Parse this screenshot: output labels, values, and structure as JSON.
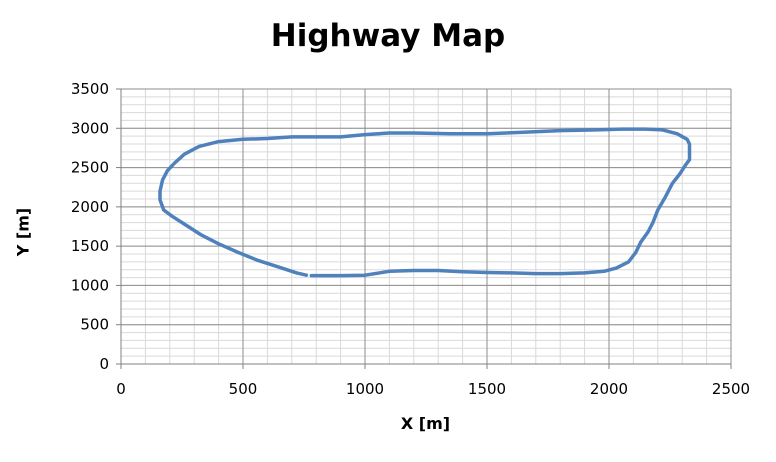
{
  "chart_data": {
    "type": "line",
    "title": "Highway Map",
    "xlabel": "X [m]",
    "ylabel": "Y [m]",
    "xlim": [
      0,
      2500
    ],
    "ylim": [
      0,
      3500
    ],
    "xticks": [
      0,
      500,
      1000,
      1500,
      2000,
      2500
    ],
    "yticks": [
      0,
      500,
      1000,
      1500,
      2000,
      2500,
      3000,
      3500
    ],
    "grid": true,
    "legend": "none",
    "line_color": "#4F81BD",
    "series": [
      {
        "x": [
          780,
          900,
          1000,
          1100,
          1200,
          1300,
          1400,
          1500,
          1600,
          1700,
          1800,
          1900,
          1980,
          2030,
          2080,
          2110,
          2130,
          2160,
          2180,
          2200,
          2230,
          2260,
          2290,
          2315,
          2330,
          2330,
          2320,
          2280,
          2220,
          2150,
          2050,
          1950,
          1800,
          1650,
          1500,
          1350,
          1200,
          1100,
          1000,
          900,
          800,
          700,
          600,
          500,
          400,
          320,
          260,
          220,
          190,
          170,
          160,
          160,
          175,
          210,
          260,
          330,
          400,
          480,
          560,
          640,
          720,
          760
        ],
        "y": [
          1125,
          1125,
          1130,
          1180,
          1190,
          1190,
          1175,
          1165,
          1160,
          1150,
          1150,
          1160,
          1180,
          1220,
          1300,
          1420,
          1550,
          1680,
          1800,
          1960,
          2120,
          2300,
          2420,
          2540,
          2600,
          2800,
          2860,
          2930,
          2980,
          2990,
          2990,
          2980,
          2970,
          2950,
          2930,
          2930,
          2940,
          2940,
          2920,
          2890,
          2890,
          2890,
          2870,
          2860,
          2830,
          2770,
          2670,
          2560,
          2460,
          2340,
          2200,
          2090,
          1960,
          1880,
          1780,
          1640,
          1530,
          1420,
          1320,
          1240,
          1160,
          1130
        ]
      }
    ]
  }
}
